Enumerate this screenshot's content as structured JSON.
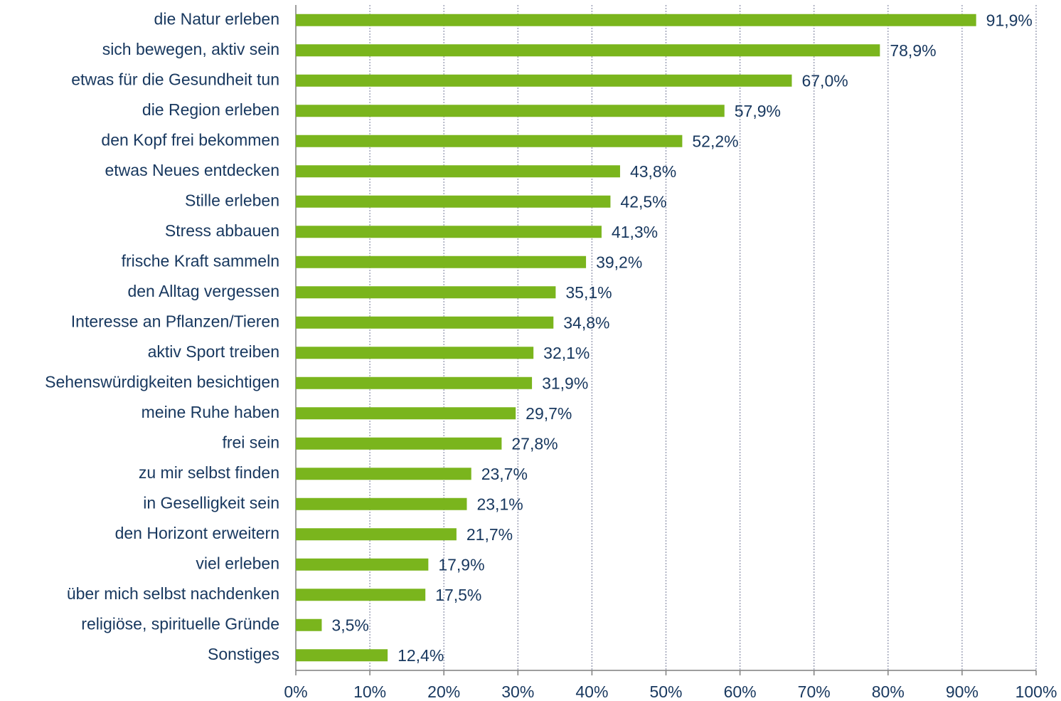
{
  "chart_data": {
    "type": "barh",
    "categories": [
      "die Natur erleben",
      "sich bewegen, aktiv sein",
      "etwas für die Gesundheit tun",
      "die Region erleben",
      "den Kopf frei bekommen",
      "etwas Neues entdecken",
      "Stille erleben",
      "Stress abbauen",
      "frische Kraft sammeln",
      "den Alltag vergessen",
      "Interesse an Pflanzen/Tieren",
      "aktiv Sport treiben",
      "Sehenswürdigkeiten besichtigen",
      "meine Ruhe haben",
      "frei sein",
      "zu mir selbst finden",
      "in Geselligkeit sein",
      "den Horizont erweitern",
      "viel erleben",
      "über mich selbst nachdenken",
      "religiöse, spirituelle Gründe",
      "Sonstiges"
    ],
    "values": [
      91.9,
      78.9,
      67.0,
      57.9,
      52.2,
      43.8,
      42.5,
      41.3,
      39.2,
      35.1,
      34.8,
      32.1,
      31.9,
      29.7,
      27.8,
      23.7,
      23.1,
      21.7,
      17.9,
      17.5,
      3.5,
      12.4
    ],
    "value_labels": [
      "91,9%",
      "78,9%",
      "67,0%",
      "57,9%",
      "52,2%",
      "43,8%",
      "42,5%",
      "41,3%",
      "39,2%",
      "35,1%",
      "34,8%",
      "32,1%",
      "31,9%",
      "29,7%",
      "27,8%",
      "23,7%",
      "23,1%",
      "21,7%",
      "17,9%",
      "17,5%",
      "3,5%",
      "12,4%"
    ],
    "color": "#7ab51d",
    "xlim": [
      0,
      100
    ],
    "xticks": [
      {
        "value": 0,
        "label": "0%"
      },
      {
        "value": 10,
        "label": "10%"
      },
      {
        "value": 20,
        "label": "20%"
      },
      {
        "value": 30,
        "label": "30%"
      },
      {
        "value": 40,
        "label": "40%"
      },
      {
        "value": 50,
        "label": "50%"
      },
      {
        "value": 60,
        "label": "60%"
      },
      {
        "value": 70,
        "label": "70%"
      },
      {
        "value": 80,
        "label": "80%"
      },
      {
        "value": 90,
        "label": "90%"
      },
      {
        "value": 100,
        "label": "100%"
      }
    ],
    "grid": true
  }
}
